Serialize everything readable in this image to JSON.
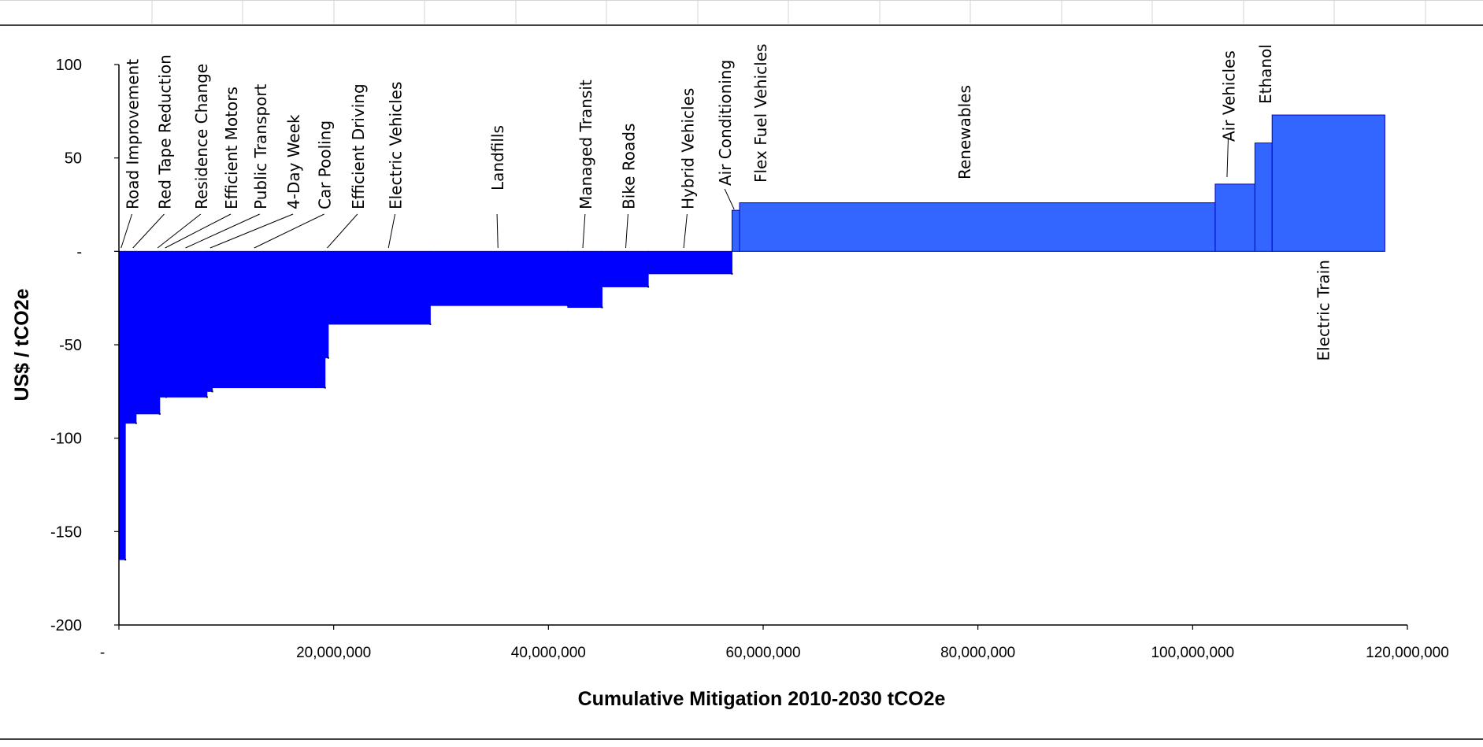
{
  "chart_data": {
    "type": "bar",
    "title": "",
    "xlabel": "Cumulative Mitigation 2010-2030 tCO2e",
    "ylabel": "US$ / tCO2e",
    "xlim": [
      0,
      120000000
    ],
    "ylim": [
      -200,
      100
    ],
    "x_ticks": [
      {
        "value": 0,
        "label": "-"
      },
      {
        "value": 20000000,
        "label": "20,000,000"
      },
      {
        "value": 40000000,
        "label": "40,000,000"
      },
      {
        "value": 60000000,
        "label": "60,000,000"
      },
      {
        "value": 80000000,
        "label": "80,000,000"
      },
      {
        "value": 100000000,
        "label": "100,000,000"
      },
      {
        "value": 120000000,
        "label": "120,000,000"
      }
    ],
    "y_ticks": [
      {
        "value": 100,
        "label": "100"
      },
      {
        "value": 50,
        "label": "50"
      },
      {
        "value": 0,
        "label": "-"
      },
      {
        "value": -50,
        "label": "-50"
      },
      {
        "value": -100,
        "label": "-100"
      },
      {
        "value": -150,
        "label": "-150"
      },
      {
        "value": -200,
        "label": "-200"
      }
    ],
    "grid": false,
    "bar_color": "#0000ff",
    "positive_bar_color": "#3366ff",
    "bars": [
      {
        "name": "Road Improvement",
        "x0": 0,
        "x1": 600000,
        "value": -165
      },
      {
        "name": "Red Tape Reduction",
        "x0": 600000,
        "x1": 1600000,
        "value": -92
      },
      {
        "name": "Residence Change",
        "x0": 1600000,
        "x1": 3800000,
        "value": -87
      },
      {
        "name": "Efficient Motors",
        "x0": 3800000,
        "x1": 4400000,
        "value": -78
      },
      {
        "name": "Public Transport",
        "x0": 4400000,
        "x1": 8200000,
        "value": -78
      },
      {
        "name": "4-Day Week",
        "x0": 8200000,
        "x1": 8700000,
        "value": -75
      },
      {
        "name": "Car Pooling",
        "x0": 8700000,
        "x1": 19200000,
        "value": -73
      },
      {
        "name": "Efficient Driving",
        "x0": 19200000,
        "x1": 19500000,
        "value": -57
      },
      {
        "name": "Electric Vehicles",
        "x0": 19500000,
        "x1": 29000000,
        "value": -39
      },
      {
        "name": "Landfills",
        "x0": 29000000,
        "x1": 41800000,
        "value": -29
      },
      {
        "name": "Managed Transit",
        "x0": 41800000,
        "x1": 45000000,
        "value": -30
      },
      {
        "name": "Bike Roads",
        "x0": 45000000,
        "x1": 49300000,
        "value": -19
      },
      {
        "name": "Hybrid Vehicles",
        "x0": 49300000,
        "x1": 57100000,
        "value": -12
      },
      {
        "name": "Air Conditioning",
        "x0": 57100000,
        "x1": 57800000,
        "value": 22
      },
      {
        "name": "Flex Fuel Vehicles",
        "x0": 57800000,
        "x1": 102100000,
        "value": 26
      },
      {
        "name": "Renewables",
        "x0": 57800000,
        "x1": 102100000,
        "value": 26
      },
      {
        "name": "Air Vehicles",
        "x0": 102100000,
        "x1": 105800000,
        "value": 36
      },
      {
        "name": "Ethanol",
        "x0": 105800000,
        "x1": 107400000,
        "value": 58
      },
      {
        "name": "Electric Train",
        "x0": 107400000,
        "x1": 117900000,
        "value": 73
      }
    ],
    "labels": [
      {
        "text": "Road Improvement",
        "ux": 1800000
      },
      {
        "text": "Red Tape Reduction",
        "ux": 4800000
      },
      {
        "text": "Residence Change",
        "ux": 8200000
      },
      {
        "text": "Efficient Motors",
        "ux": 11000000
      },
      {
        "text": "Public Transport",
        "ux": 13700000
      },
      {
        "text": "4-Day Week",
        "ux": 16800000
      },
      {
        "text": "Car Pooling",
        "ux": 19700000
      },
      {
        "text": "Efficient Driving",
        "ux": 22800000
      },
      {
        "text": "Electric Vehicles",
        "ux": 26300000
      },
      {
        "text": "Landfills",
        "ux": 35800000
      },
      {
        "text": "Managed Transit",
        "ux": 44000000
      },
      {
        "text": "Bike Roads",
        "ux": 48000000
      },
      {
        "text": "Hybrid Vehicles",
        "ux": 53500000
      },
      {
        "text": "Air Conditioning",
        "ux": 57000000
      },
      {
        "text": "Flex Fuel Vehicles",
        "ux": 60300000
      },
      {
        "text": "Renewables",
        "ux": 79300000
      },
      {
        "text": "Air Vehicles",
        "ux": 103900000
      },
      {
        "text": "Ethanol",
        "ux": 107300000
      },
      {
        "text": "Electric Train",
        "ux": 112700000
      }
    ]
  }
}
